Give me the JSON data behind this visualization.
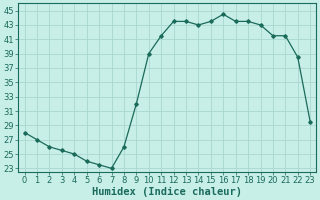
{
  "xlabel": "Humidex (Indice chaleur)",
  "ylabel": "",
  "x": [
    0,
    1,
    2,
    3,
    4,
    5,
    6,
    7,
    8,
    9,
    10,
    11,
    12,
    13,
    14,
    15,
    16,
    17,
    18,
    19,
    20,
    21,
    22,
    23
  ],
  "y": [
    28,
    27,
    26,
    25.5,
    25,
    24,
    23.5,
    23,
    26,
    32,
    39,
    41.5,
    43.5,
    43.5,
    43,
    43.5,
    44.5,
    43.5,
    43.5,
    43,
    41.5,
    41.5,
    38.5,
    29.5
  ],
  "line_color": "#1a6b5a",
  "marker": "D",
  "marker_size": 1.8,
  "bg_color": "#c8eee8",
  "grid_color": "#a8d8d0",
  "ylim": [
    22.5,
    46
  ],
  "yticks": [
    23,
    25,
    27,
    29,
    31,
    33,
    35,
    37,
    39,
    41,
    43,
    45
  ],
  "xticks": [
    0,
    1,
    2,
    3,
    4,
    5,
    6,
    7,
    8,
    9,
    10,
    11,
    12,
    13,
    14,
    15,
    16,
    17,
    18,
    19,
    20,
    21,
    22,
    23
  ],
  "xlim": [
    -0.5,
    23.5
  ],
  "tick_fontsize": 6,
  "xlabel_fontsize": 7.5
}
